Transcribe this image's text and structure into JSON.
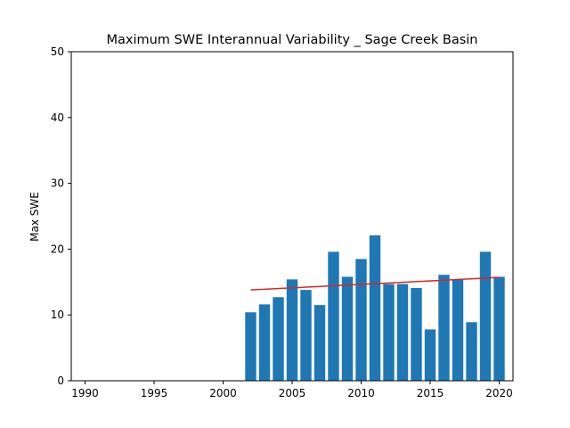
{
  "chart_data": {
    "type": "bar",
    "title": "Maximum SWE Interannual Variability _ Sage Creek Basin",
    "xlabel": "",
    "ylabel": "Max SWE",
    "xlim": [
      1989,
      2021
    ],
    "ylim": [
      0,
      50
    ],
    "xticks": [
      1990,
      1995,
      2000,
      2005,
      2010,
      2015,
      2020
    ],
    "yticks": [
      0,
      10,
      20,
      30,
      40,
      50
    ],
    "grid": false,
    "colors": {
      "bar": "#1f77b4",
      "trend": "#d62728"
    },
    "x": [
      2002,
      2003,
      2004,
      2005,
      2006,
      2007,
      2008,
      2009,
      2010,
      2011,
      2012,
      2013,
      2014,
      2015,
      2016,
      2017,
      2018,
      2019,
      2020
    ],
    "values": [
      10.4,
      11.6,
      12.7,
      15.4,
      13.8,
      11.5,
      19.6,
      15.8,
      18.5,
      22.1,
      14.7,
      14.7,
      14.1,
      7.8,
      16.1,
      15.4,
      8.9,
      19.6,
      15.8
    ],
    "trend": {
      "x": [
        2002,
        2020
      ],
      "y": [
        13.8,
        15.7
      ]
    }
  }
}
